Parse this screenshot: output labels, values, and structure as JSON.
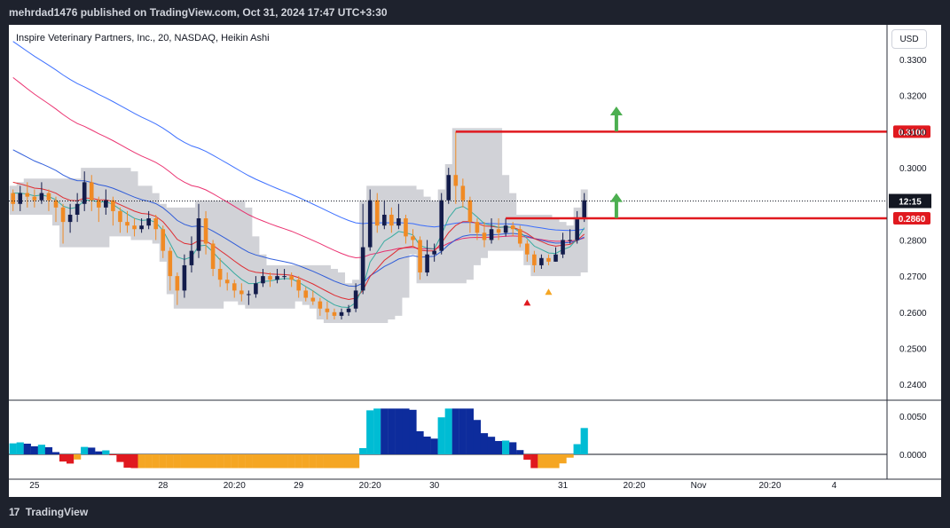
{
  "header": {
    "published": "mehrdad1476 published on TradingView.com, Oct 31, 2024 17:47 UTC+3:30"
  },
  "chart": {
    "title": "Inspire Veterinary Partners, Inc., 20, NASDAQ, Heikin Ashi",
    "currency": "USD"
  },
  "footer": {
    "brand": "TradingView",
    "logo_mark": "17"
  },
  "colors": {
    "bull": "#131c4b",
    "bear": "#f08a24",
    "resistance": "#e0191f",
    "green_arrow": "#4caf50",
    "cloud": "#c9cad0"
  },
  "chart_data": {
    "type": "candlestick",
    "price_axis": {
      "ticks": [
        0.24,
        0.25,
        0.26,
        0.27,
        0.28,
        0.29,
        0.3,
        0.31,
        0.32,
        0.33
      ],
      "labels": [
        "0.2400",
        "0.2500",
        "0.2600",
        "0.2700",
        "0.2800",
        "",
        "0.3000",
        "0.3100",
        "0.3200",
        "0.3300"
      ]
    },
    "time_axis": {
      "labels": [
        {
          "text": "25",
          "i": 3
        },
        {
          "text": "28",
          "i": 21
        },
        {
          "text": "20:20",
          "i": 31
        },
        {
          "text": "29",
          "i": 40
        },
        {
          "text": "20:20",
          "i": 50
        },
        {
          "text": "30",
          "i": 59
        },
        {
          "text": "31",
          "i": 77
        },
        {
          "text": "20:20",
          "i": 87
        },
        {
          "text": "Nov",
          "i": 96
        },
        {
          "text": "20:20",
          "i": 106
        },
        {
          "text": "4",
          "i": 115
        }
      ]
    },
    "current_price": {
      "time": "12:15",
      "value": 0.2908
    },
    "resistance_lines": [
      {
        "value": 0.31,
        "label": "0.3100",
        "from_i": 62
      },
      {
        "value": 0.286,
        "label": "0.2860",
        "from_i": 69
      }
    ],
    "arrows": [
      {
        "i": 84,
        "value": 0.3155
      },
      {
        "i": 84,
        "value": 0.2915
      }
    ],
    "signals": [
      {
        "i": 72,
        "value": 0.2628,
        "color": "#e0191f"
      },
      {
        "i": 75,
        "value": 0.2658,
        "color": "#f5a623"
      }
    ],
    "candles": [
      [
        0.293,
        0.29,
        0.294,
        0.288
      ],
      [
        0.29,
        0.293,
        0.295,
        0.288
      ],
      [
        0.293,
        0.292,
        0.296,
        0.289
      ],
      [
        0.292,
        0.291,
        0.294,
        0.289
      ],
      [
        0.291,
        0.293,
        0.296,
        0.29
      ],
      [
        0.293,
        0.291,
        0.294,
        0.288
      ],
      [
        0.291,
        0.289,
        0.292,
        0.285
      ],
      [
        0.289,
        0.285,
        0.29,
        0.279
      ],
      [
        0.285,
        0.287,
        0.29,
        0.282
      ],
      [
        0.287,
        0.29,
        0.293,
        0.285
      ],
      [
        0.29,
        0.296,
        0.299,
        0.288
      ],
      [
        0.296,
        0.291,
        0.298,
        0.288
      ],
      [
        0.291,
        0.289,
        0.292,
        0.285
      ],
      [
        0.289,
        0.291,
        0.294,
        0.287
      ],
      [
        0.291,
        0.288,
        0.292,
        0.284
      ],
      [
        0.288,
        0.285,
        0.289,
        0.282
      ],
      [
        0.285,
        0.284,
        0.288,
        0.282
      ],
      [
        0.284,
        0.283,
        0.286,
        0.281
      ],
      [
        0.283,
        0.284,
        0.286,
        0.282
      ],
      [
        0.284,
        0.286,
        0.288,
        0.283
      ],
      [
        0.286,
        0.283,
        0.287,
        0.28
      ],
      [
        0.283,
        0.277,
        0.284,
        0.275
      ],
      [
        0.277,
        0.27,
        0.278,
        0.266
      ],
      [
        0.27,
        0.266,
        0.271,
        0.262
      ],
      [
        0.266,
        0.273,
        0.276,
        0.264
      ],
      [
        0.273,
        0.277,
        0.281,
        0.271
      ],
      [
        0.277,
        0.286,
        0.29,
        0.275
      ],
      [
        0.286,
        0.279,
        0.288,
        0.276
      ],
      [
        0.279,
        0.272,
        0.28,
        0.27
      ],
      [
        0.272,
        0.269,
        0.275,
        0.267
      ],
      [
        0.269,
        0.268,
        0.271,
        0.266
      ],
      [
        0.268,
        0.266,
        0.269,
        0.264
      ],
      [
        0.266,
        0.265,
        0.268,
        0.263
      ],
      [
        0.265,
        0.265,
        0.266,
        0.262
      ],
      [
        0.265,
        0.268,
        0.27,
        0.264
      ],
      [
        0.268,
        0.27,
        0.272,
        0.267
      ],
      [
        0.27,
        0.269,
        0.271,
        0.267
      ],
      [
        0.269,
        0.27,
        0.272,
        0.268
      ],
      [
        0.27,
        0.27,
        0.272,
        0.269
      ],
      [
        0.27,
        0.269,
        0.271,
        0.267
      ],
      [
        0.269,
        0.266,
        0.27,
        0.264
      ],
      [
        0.266,
        0.264,
        0.267,
        0.263
      ],
      [
        0.264,
        0.263,
        0.266,
        0.262
      ],
      [
        0.263,
        0.261,
        0.264,
        0.259
      ],
      [
        0.261,
        0.26,
        0.263,
        0.258
      ],
      [
        0.26,
        0.259,
        0.261,
        0.258
      ],
      [
        0.259,
        0.26,
        0.261,
        0.258
      ],
      [
        0.26,
        0.261,
        0.262,
        0.259
      ],
      [
        0.261,
        0.266,
        0.268,
        0.26
      ],
      [
        0.266,
        0.278,
        0.29,
        0.265
      ],
      [
        0.278,
        0.291,
        0.294,
        0.277
      ],
      [
        0.291,
        0.284,
        0.293,
        0.282
      ],
      [
        0.284,
        0.287,
        0.291,
        0.283
      ],
      [
        0.287,
        0.284,
        0.289,
        0.282
      ],
      [
        0.284,
        0.286,
        0.29,
        0.283
      ],
      [
        0.286,
        0.281,
        0.287,
        0.279
      ],
      [
        0.281,
        0.28,
        0.283,
        0.278
      ],
      [
        0.28,
        0.271,
        0.281,
        0.269
      ],
      [
        0.271,
        0.276,
        0.28,
        0.27
      ],
      [
        0.276,
        0.277,
        0.279,
        0.274
      ],
      [
        0.277,
        0.291,
        0.293,
        0.276
      ],
      [
        0.291,
        0.298,
        0.3,
        0.29
      ],
      [
        0.298,
        0.295,
        0.31,
        0.29
      ],
      [
        0.295,
        0.291,
        0.297,
        0.289
      ],
      [
        0.291,
        0.285,
        0.292,
        0.282
      ],
      [
        0.285,
        0.282,
        0.286,
        0.28
      ],
      [
        0.282,
        0.28,
        0.285,
        0.278
      ],
      [
        0.28,
        0.283,
        0.286,
        0.279
      ],
      [
        0.283,
        0.282,
        0.286,
        0.28
      ],
      [
        0.282,
        0.284,
        0.286,
        0.281
      ],
      [
        0.284,
        0.283,
        0.285,
        0.281
      ],
      [
        0.283,
        0.279,
        0.284,
        0.278
      ],
      [
        0.279,
        0.276,
        0.28,
        0.274
      ],
      [
        0.276,
        0.273,
        0.277,
        0.271
      ],
      [
        0.273,
        0.275,
        0.276,
        0.272
      ],
      [
        0.275,
        0.274,
        0.276,
        0.273
      ],
      [
        0.274,
        0.276,
        0.278,
        0.274
      ],
      [
        0.276,
        0.28,
        0.282,
        0.275
      ],
      [
        0.28,
        0.28,
        0.283,
        0.279
      ],
      [
        0.28,
        0.286,
        0.288,
        0.279
      ],
      [
        0.286,
        0.291,
        0.293,
        0.285
      ]
    ],
    "oscillator": {
      "axis": {
        "ticks": [
          0.0,
          0.005
        ],
        "labels": [
          "0.0000",
          "0.0050"
        ]
      }
    }
  }
}
